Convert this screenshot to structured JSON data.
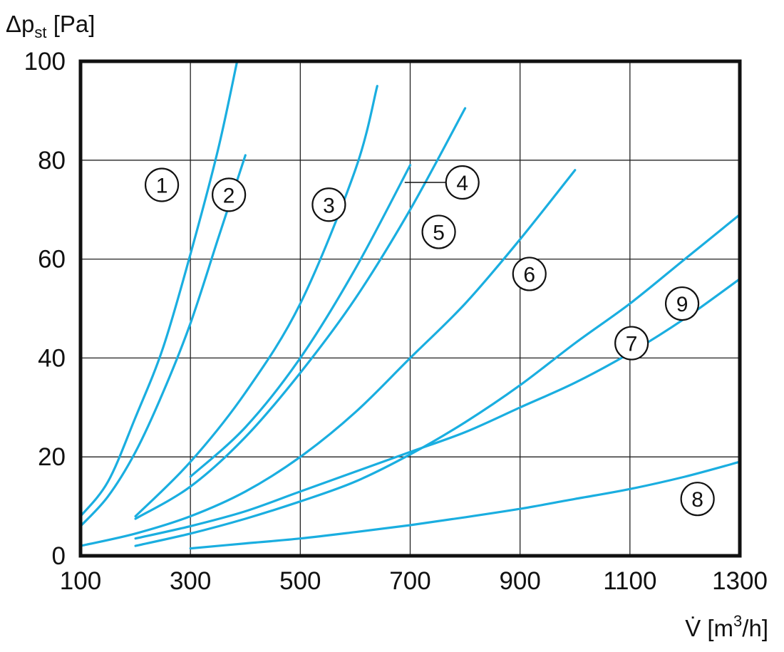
{
  "chart_data": {
    "type": "line",
    "ylabel": {
      "main": "Δp",
      "sub": "st",
      "unit": " [Pa]"
    },
    "xlabel": {
      "main": "V̇ [m",
      "sup": "3",
      "unit": "/h]"
    },
    "xlim": [
      100,
      1300
    ],
    "ylim": [
      0,
      100
    ],
    "xticks": [
      "100",
      "300",
      "500",
      "700",
      "900",
      "1100",
      "1300"
    ],
    "yticks": [
      "0",
      "20",
      "40",
      "60",
      "80",
      "100"
    ],
    "grid": true,
    "line_color": "#1aaee0",
    "series": [
      {
        "label": "1",
        "x": [
          100,
          150,
          200,
          250,
          300,
          350,
          385
        ],
        "y": [
          8,
          15,
          28,
          42,
          61,
          82,
          100
        ]
      },
      {
        "label": "2",
        "x": [
          100,
          150,
          200,
          250,
          300,
          350,
          400
        ],
        "y": [
          6,
          12,
          21,
          33,
          47,
          64,
          81
        ]
      },
      {
        "label": "3",
        "x": [
          200,
          300,
          400,
          500,
          600,
          640
        ],
        "y": [
          8,
          19,
          33,
          51,
          78,
          95
        ]
      },
      {
        "label": "4",
        "x": [
          300,
          400,
          500,
          600,
          700
        ],
        "y": [
          16,
          26,
          40,
          58,
          79
        ]
      },
      {
        "label": "5",
        "x": [
          200,
          300,
          400,
          500,
          600,
          700,
          800
        ],
        "y": [
          7.5,
          14,
          24,
          37,
          52,
          70,
          90.5
        ]
      },
      {
        "label": "6",
        "x": [
          100,
          200,
          300,
          400,
          500,
          600,
          700,
          800,
          900,
          1000
        ],
        "y": [
          2,
          4.5,
          8,
          13,
          20,
          29,
          40,
          51,
          64,
          78
        ]
      },
      {
        "label": "7",
        "x": [
          200,
          300,
          400,
          500,
          600,
          700,
          800,
          900,
          1000,
          1100,
          1200,
          1300
        ],
        "y": [
          2,
          4.5,
          7.5,
          11,
          15,
          20.5,
          27,
          34.5,
          43,
          51,
          60,
          69
        ]
      },
      {
        "label": "8",
        "x": [
          300,
          400,
          500,
          600,
          700,
          800,
          900,
          1000,
          1100,
          1200,
          1300
        ],
        "y": [
          1.5,
          2.5,
          3.5,
          4.8,
          6.2,
          7.8,
          9.5,
          11.5,
          13.5,
          16,
          19
        ]
      },
      {
        "label": "9",
        "x": [
          200,
          300,
          400,
          500,
          600,
          700,
          800,
          900,
          1000,
          1100,
          1200,
          1300
        ],
        "y": [
          3.5,
          6,
          9,
          13,
          17,
          21,
          25,
          30,
          35,
          41,
          48,
          56
        ]
      }
    ],
    "annotations": [
      {
        "text": "1",
        "x": 248,
        "y": 75
      },
      {
        "text": "2",
        "x": 370,
        "y": 73
      },
      {
        "text": "3",
        "x": 552,
        "y": 71
      },
      {
        "text": "4",
        "x": 795,
        "y": 75.5
      },
      {
        "text": "5",
        "x": 752,
        "y": 65.5
      },
      {
        "text": "6",
        "x": 917,
        "y": 57
      },
      {
        "text": "9",
        "x": 1195,
        "y": 51
      },
      {
        "text": "7",
        "x": 1103,
        "y": 43
      },
      {
        "text": "8",
        "x": 1223,
        "y": 11.5
      }
    ],
    "leader_line": {
      "from": [
        690,
        75.5
      ],
      "to": [
        765,
        75.5
      ]
    }
  }
}
